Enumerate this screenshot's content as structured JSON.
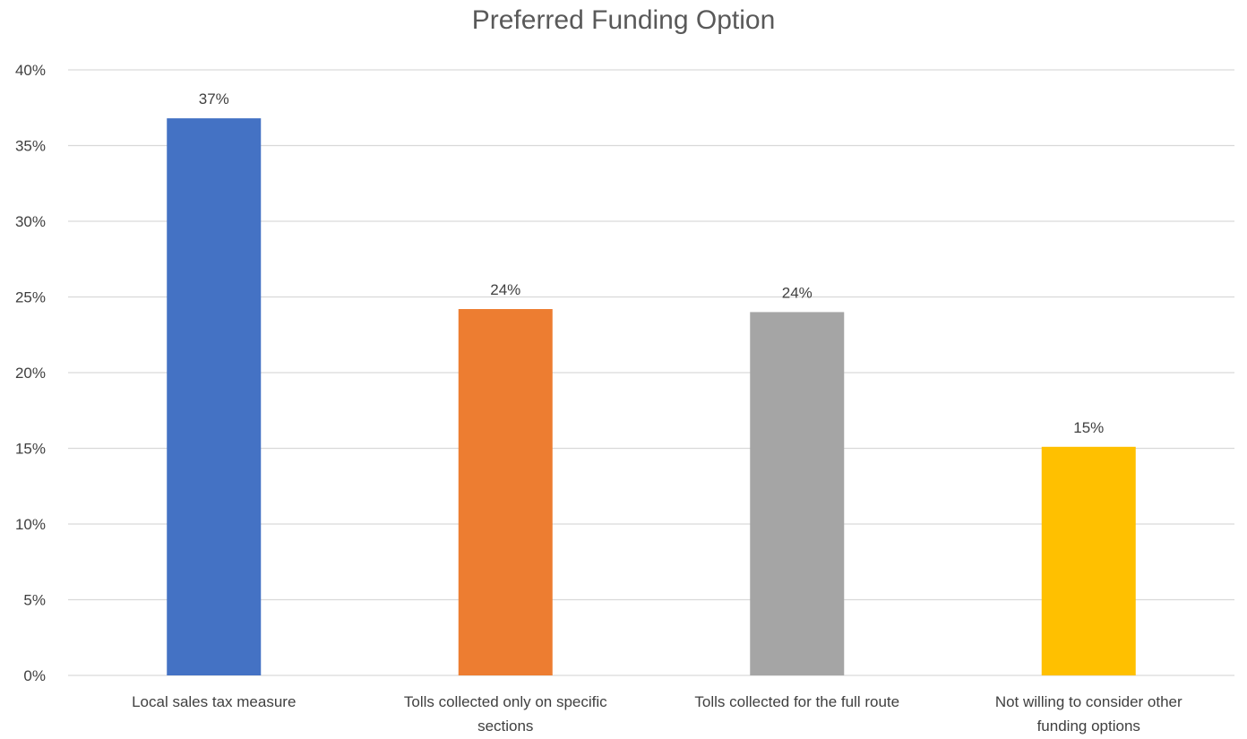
{
  "chart_data": {
    "type": "bar",
    "title": "Preferred Funding Option",
    "xlabel": "",
    "ylabel": "",
    "categories": [
      "Local sales tax measure",
      "Tolls collected only on specific sections",
      "Tolls collected for the full route",
      "Not willing to consider other funding options"
    ],
    "values": [
      36.8,
      24.2,
      24.0,
      15.1
    ],
    "data_labels": [
      "37%",
      "24%",
      "24%",
      "15%"
    ],
    "colors": [
      "#4472C4",
      "#ED7D31",
      "#A5A5A5",
      "#FFC000"
    ],
    "ylim": [
      0,
      40
    ],
    "yticks": [
      0,
      5,
      10,
      15,
      20,
      25,
      30,
      35,
      40
    ],
    "ytick_labels": [
      "0%",
      "5%",
      "10%",
      "15%",
      "20%",
      "25%",
      "30%",
      "35%",
      "40%"
    ],
    "grid": true,
    "legend": "none",
    "gridline_color": "#D9D9D9",
    "text_color": "#404040"
  }
}
